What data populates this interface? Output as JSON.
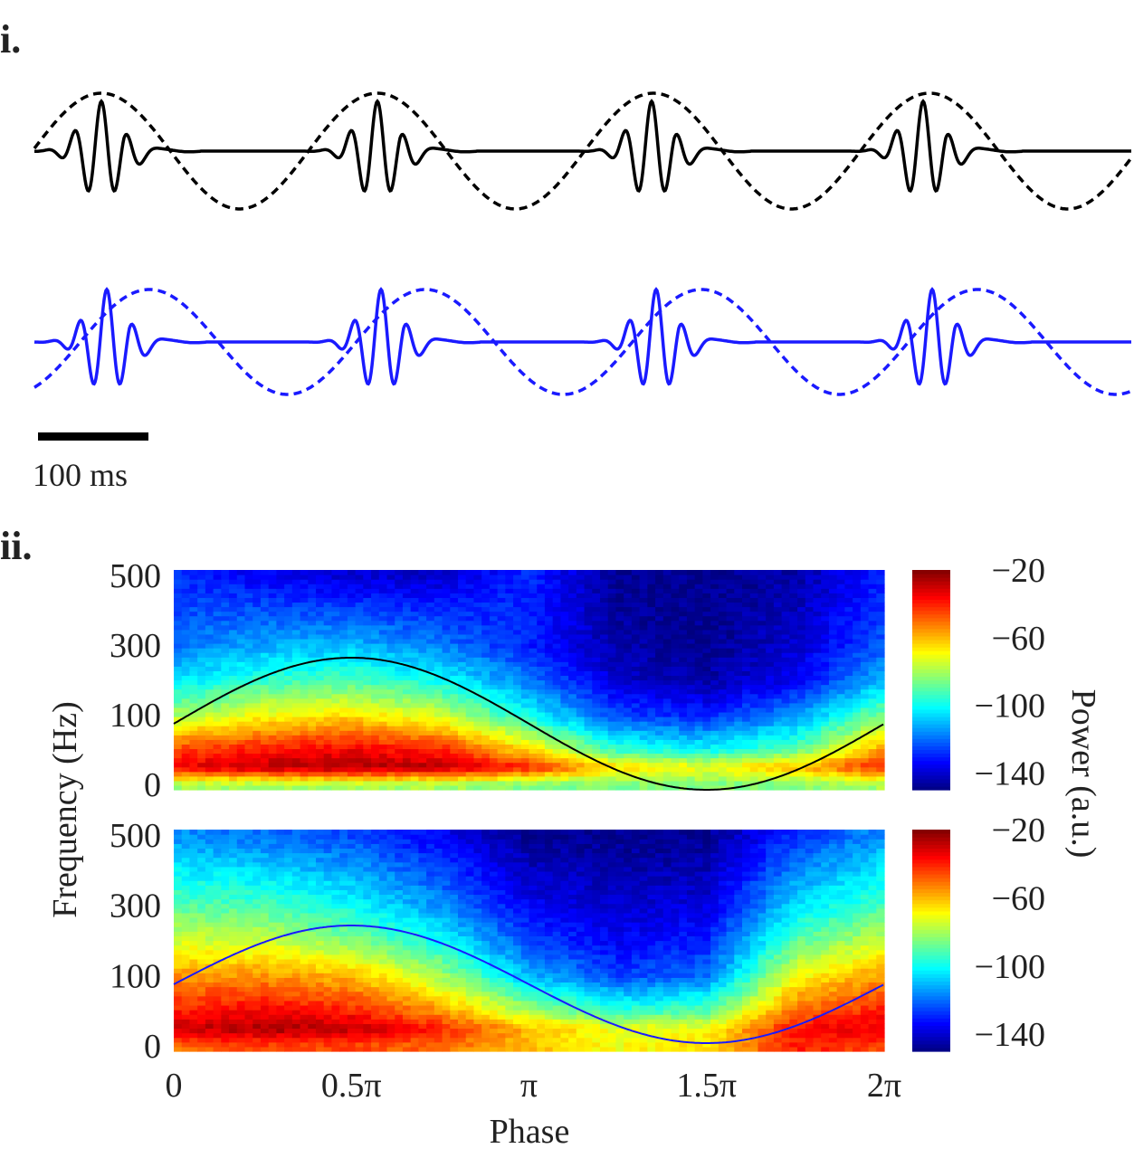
{
  "panel_labels": {
    "i": "i.",
    "ii": "ii."
  },
  "scale_bar": {
    "label": "100 ms",
    "value_ms": 100
  },
  "colors": {
    "panel_i_top": "#000000",
    "panel_i_bottom": "#1a1aff",
    "overlay_top": "#000000",
    "overlay_bottom": "#1a1aff"
  },
  "chart_data": [
    {
      "type": "line",
      "panel": "i",
      "description_style": "two trace pairs: solid bursts + dashed slow oscillation",
      "series": [
        {
          "style": "solid",
          "color": "#000000",
          "bursts": 4,
          "burst_phase": "peak"
        },
        {
          "style": "dashed",
          "color": "#000000",
          "cycles": 4
        },
        {
          "style": "solid",
          "color": "#1a1aff",
          "bursts": 4,
          "burst_phase": "rising"
        },
        {
          "style": "dashed",
          "color": "#1a1aff",
          "cycles": 4
        }
      ]
    },
    {
      "type": "heatmap",
      "panel": "ii-top",
      "xlabel": "Phase",
      "ylabel": "Frequency (Hz)",
      "colorbar_label": "Power (a.u.)",
      "x_ticks": [
        "0",
        "0.5π",
        "π",
        "1.5π",
        "2π"
      ],
      "y_ticks": [
        "500",
        "300",
        "100",
        "0"
      ],
      "y_tick_values": [
        0,
        100,
        300,
        500
      ],
      "colorbar_ticks": [
        "−20",
        "−60",
        "−100",
        "−140"
      ],
      "colorbar_tick_values": [
        -20,
        -60,
        -100,
        -140
      ],
      "clim": [
        -150,
        -20
      ],
      "colormap": "jet",
      "overlay": {
        "shape": "sine",
        "color": "#000000"
      },
      "phase_grid_pi": [
        0,
        0.25,
        0.5,
        0.75,
        1,
        1.25,
        1.5,
        1.75,
        2
      ],
      "freq_grid_hz": [
        0,
        25,
        50,
        100,
        200,
        300,
        500
      ],
      "power": [
        [
          -80,
          -80,
          -80,
          -80,
          -85,
          -85,
          -85,
          -85,
          -80
        ],
        [
          -35,
          -28,
          -25,
          -28,
          -40,
          -65,
          -70,
          -60,
          -40
        ],
        [
          -45,
          -38,
          -35,
          -40,
          -65,
          -95,
          -100,
          -90,
          -55
        ],
        [
          -80,
          -70,
          -65,
          -75,
          -100,
          -125,
          -130,
          -115,
          -85
        ],
        [
          -105,
          -95,
          -92,
          -100,
          -118,
          -140,
          -145,
          -135,
          -110
        ],
        [
          -120,
          -112,
          -110,
          -118,
          -130,
          -145,
          -148,
          -140,
          -122
        ],
        [
          -128,
          -135,
          -140,
          -140,
          -128,
          -148,
          -148,
          -145,
          -130
        ]
      ]
    },
    {
      "type": "heatmap",
      "panel": "ii-bottom",
      "x_ticks": [
        "0",
        "0.5π",
        "π",
        "1.5π",
        "2π"
      ],
      "y_ticks": [
        "500",
        "300",
        "100",
        "0"
      ],
      "y_tick_values": [
        0,
        100,
        300,
        500
      ],
      "colorbar_ticks": [
        "−20",
        "−60",
        "−100",
        "−140"
      ],
      "colorbar_tick_values": [
        -20,
        -60,
        -100,
        -140
      ],
      "clim": [
        -150,
        -20
      ],
      "colormap": "jet",
      "overlay": {
        "shape": "sine",
        "color": "#1a1aff"
      },
      "phase_grid_pi": [
        0,
        0.25,
        0.5,
        0.75,
        1,
        1.25,
        1.5,
        1.75,
        2
      ],
      "freq_grid_hz": [
        0,
        25,
        50,
        100,
        200,
        300,
        500
      ],
      "power": [
        [
          -50,
          -45,
          -45,
          -50,
          -60,
          -70,
          -65,
          -40,
          -45
        ],
        [
          -30,
          -25,
          -28,
          -40,
          -60,
          -72,
          -70,
          -38,
          -32
        ],
        [
          -40,
          -35,
          -40,
          -55,
          -80,
          -95,
          -90,
          -50,
          -40
        ],
        [
          -55,
          -55,
          -60,
          -80,
          -110,
          -125,
          -120,
          -70,
          -55
        ],
        [
          -75,
          -75,
          -85,
          -100,
          -125,
          -135,
          -130,
          -90,
          -75
        ],
        [
          -90,
          -92,
          -100,
          -115,
          -135,
          -140,
          -138,
          -105,
          -92
        ],
        [
          -115,
          -120,
          -125,
          -135,
          -148,
          -148,
          -148,
          -128,
          -115
        ]
      ]
    }
  ]
}
